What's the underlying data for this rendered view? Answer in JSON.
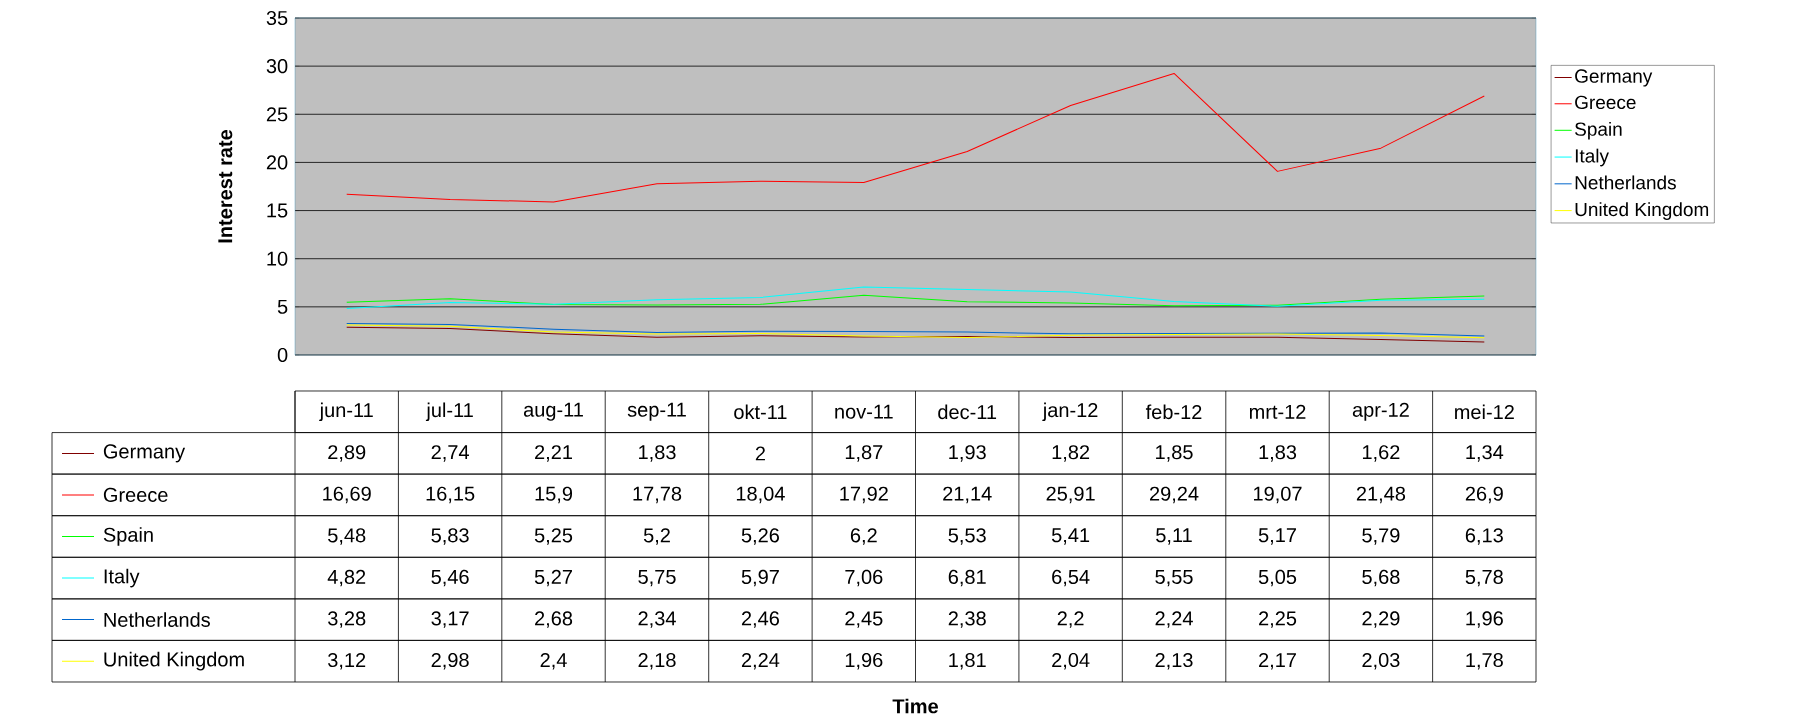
{
  "chart_data": {
    "type": "line",
    "ylabel": "Interest rate",
    "annotations": [
      "Time"
    ],
    "categories": [
      "jun-11",
      "jul-11",
      "aug-11",
      "sep-11",
      "okt-11",
      "nov-11",
      "dec-11",
      "jan-12",
      "feb-12",
      "mrt-12",
      "apr-12",
      "mei-12"
    ],
    "ylim": [
      0,
      35
    ],
    "yticks": [
      0,
      5,
      10,
      15,
      20,
      25,
      30,
      35
    ],
    "grid": "y",
    "legend": "right",
    "marker": "none",
    "line_style": "solid",
    "series": [
      {
        "name": "Germany",
        "color": "#800000",
        "values": [
          2.89,
          2.74,
          2.21,
          1.83,
          2,
          1.87,
          1.93,
          1.82,
          1.85,
          1.83,
          1.62,
          1.34
        ],
        "value_labels": [
          "2,89",
          "2,74",
          "2,21",
          "1,83",
          "2",
          "1,87",
          "1,93",
          "1,82",
          "1,85",
          "1,83",
          "1,62",
          "1,34"
        ]
      },
      {
        "name": "Greece",
        "color": "#ff0000",
        "values": [
          16.69,
          16.15,
          15.9,
          17.78,
          18.04,
          17.92,
          21.14,
          25.91,
          29.24,
          19.07,
          21.48,
          26.9
        ],
        "value_labels": [
          "16,69",
          "16,15",
          "15,9",
          "17,78",
          "18,04",
          "17,92",
          "21,14",
          "25,91",
          "29,24",
          "19,07",
          "21,48",
          "26,9"
        ]
      },
      {
        "name": "Spain",
        "color": "#00ff00",
        "values": [
          5.48,
          5.83,
          5.25,
          5.2,
          5.26,
          6.2,
          5.53,
          5.41,
          5.11,
          5.17,
          5.79,
          6.13
        ],
        "value_labels": [
          "5,48",
          "5,83",
          "5,25",
          "5,2",
          "5,26",
          "6,2",
          "5,53",
          "5,41",
          "5,11",
          "5,17",
          "5,79",
          "6,13"
        ]
      },
      {
        "name": "Italy",
        "color": "#00ffff",
        "values": [
          4.82,
          5.46,
          5.27,
          5.75,
          5.97,
          7.06,
          6.81,
          6.54,
          5.55,
          5.05,
          5.68,
          5.78
        ],
        "value_labels": [
          "4,82",
          "5,46",
          "5,27",
          "5,75",
          "5,97",
          "7,06",
          "6,81",
          "6,54",
          "5,55",
          "5,05",
          "5,68",
          "5,78"
        ]
      },
      {
        "name": "Netherlands",
        "color": "#0066cc",
        "values": [
          3.28,
          3.17,
          2.68,
          2.34,
          2.46,
          2.45,
          2.38,
          2.2,
          2.24,
          2.25,
          2.29,
          1.96
        ],
        "value_labels": [
          "3,28",
          "3,17",
          "2,68",
          "2,34",
          "2,46",
          "2,45",
          "2,38",
          "2,2",
          "2,24",
          "2,25",
          "2,29",
          "1,96"
        ]
      },
      {
        "name": "United Kingdom",
        "color": "#ffff00",
        "values": [
          3.12,
          2.98,
          2.4,
          2.18,
          2.24,
          1.96,
          1.81,
          2.04,
          2.13,
          2.17,
          2.03,
          1.78
        ],
        "value_labels": [
          "3,12",
          "2,98",
          "2,4",
          "2,18",
          "2,24",
          "1,96",
          "1,81",
          "2,04",
          "2,13",
          "2,17",
          "2,03",
          "1,78"
        ]
      }
    ]
  }
}
